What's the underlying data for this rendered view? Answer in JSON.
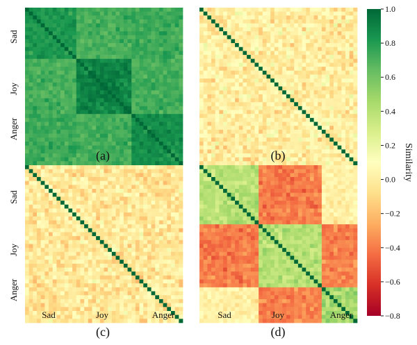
{
  "chart_data": [
    {
      "type": "heatmap",
      "label": "(a)",
      "ytick_labels": [
        "Sad",
        "Joy",
        "Anger"
      ],
      "xtick_labels": [],
      "grid_size": 40,
      "groups": [
        13,
        14,
        13
      ],
      "diagonal_value": 1.0,
      "within_group_similarity": [
        0.82,
        0.9,
        0.86
      ],
      "between_group_similarity": [
        [
          null,
          0.72,
          0.74
        ],
        [
          0.72,
          null,
          0.72
        ],
        [
          0.74,
          0.72,
          null
        ]
      ],
      "cell_noise": 0.06
    },
    {
      "type": "heatmap",
      "label": "(b)",
      "ytick_labels": [],
      "xtick_labels": [],
      "grid_size": 40,
      "groups": [
        13,
        14,
        13
      ],
      "diagonal_value": 1.0,
      "within_group_similarity": [
        0.0,
        0.0,
        0.0
      ],
      "between_group_similarity": [
        [
          null,
          0.0,
          0.0
        ],
        [
          0.0,
          null,
          0.0
        ],
        [
          0.0,
          0.0,
          null
        ]
      ],
      "cell_noise": 0.12
    },
    {
      "type": "heatmap",
      "label": "(c)",
      "ytick_labels": [
        "Sad",
        "Joy",
        "Anger"
      ],
      "xtick_labels": [
        "Sad",
        "Joy",
        "Anger"
      ],
      "grid_size": 40,
      "groups": [
        13,
        14,
        13
      ],
      "diagonal_value": 1.0,
      "within_group_similarity": [
        -0.02,
        -0.02,
        -0.02
      ],
      "between_group_similarity": [
        [
          null,
          -0.03,
          -0.03
        ],
        [
          -0.03,
          null,
          -0.03
        ],
        [
          -0.03,
          -0.03,
          null
        ]
      ],
      "cell_noise": 0.12
    },
    {
      "type": "heatmap",
      "label": "(d)",
      "ytick_labels": [],
      "xtick_labels": [
        "Sad",
        "Joy",
        "Anger"
      ],
      "grid_size": 40,
      "groups": [
        15,
        16,
        9
      ],
      "diagonal_value": 1.0,
      "within_group_similarity": [
        0.4,
        0.4,
        0.45
      ],
      "between_group_similarity": [
        [
          null,
          -0.4,
          0.02
        ],
        [
          -0.4,
          null,
          -0.38
        ],
        [
          0.02,
          -0.38,
          null
        ]
      ],
      "cell_noise": 0.08
    }
  ],
  "colorbar": {
    "title": "Similarity",
    "min": -0.8,
    "max": 1.0,
    "ticks": [
      "1.0",
      "0.8",
      "0.6",
      "0.4",
      "0.2",
      "0.0",
      "−0.2",
      "−0.4",
      "−0.6",
      "−0.8"
    ],
    "tick_values": [
      1.0,
      0.8,
      0.6,
      0.4,
      0.2,
      0.0,
      -0.2,
      -0.4,
      -0.6,
      -0.8
    ],
    "colormap": "RdYlGn",
    "colors": [
      "#a50026",
      "#d73027",
      "#f46d43",
      "#fdae61",
      "#fee08b",
      "#ffffbf",
      "#d9ef8b",
      "#a6d96a",
      "#66bd63",
      "#1a9850",
      "#006837"
    ]
  }
}
